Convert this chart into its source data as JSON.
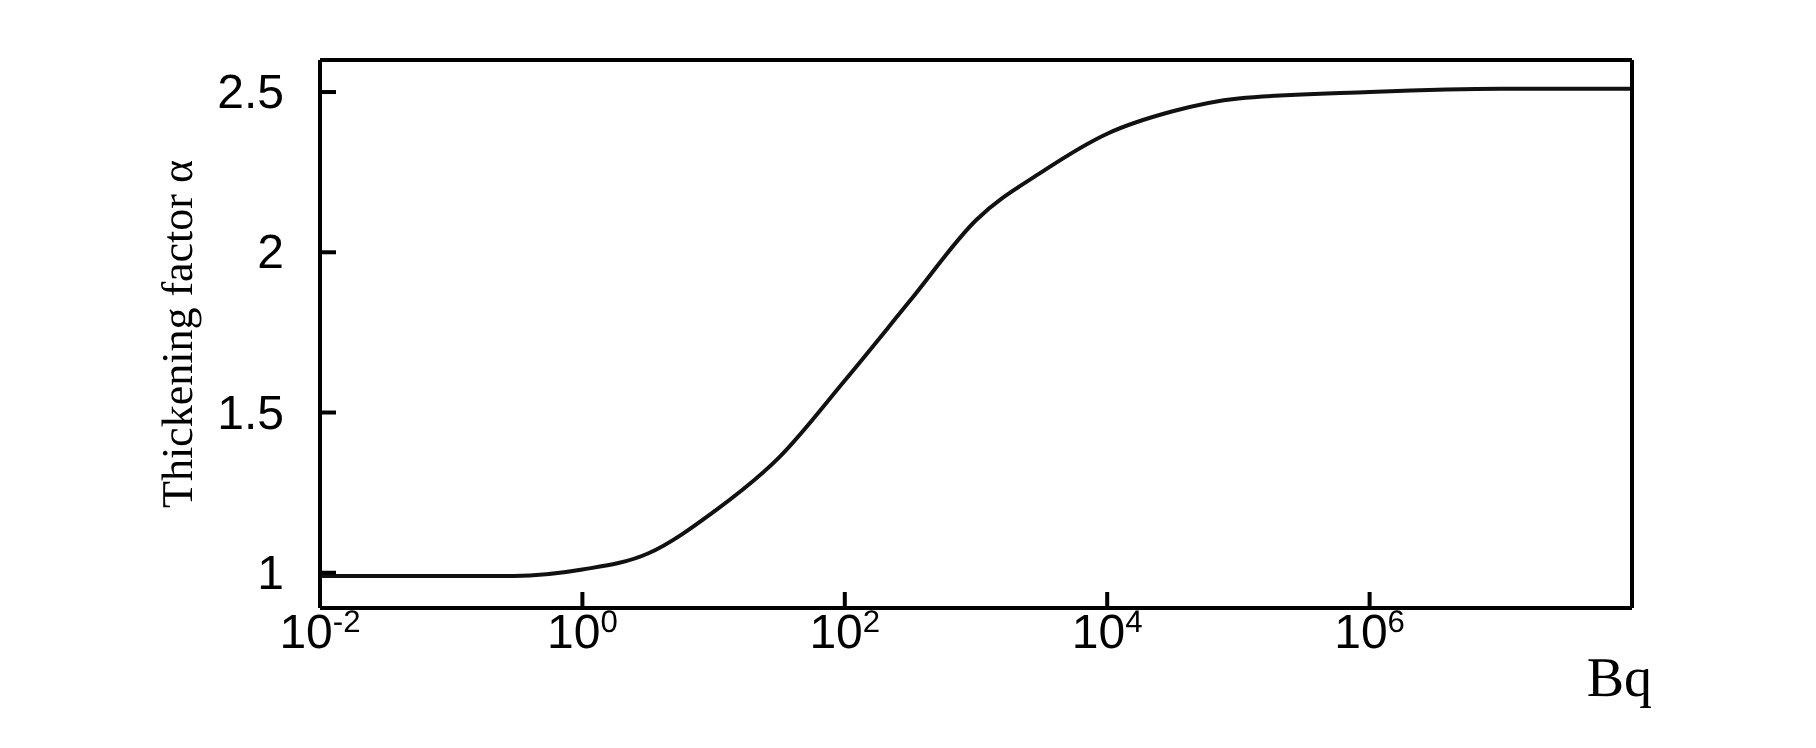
{
  "chart_data": {
    "type": "line",
    "xlabel": "Bq",
    "ylabel": "Thickening factor α",
    "log": "x",
    "x": [
      0.01,
      0.1,
      0.3,
      1,
      3.16,
      10,
      31.6,
      100,
      316,
      1000,
      3160,
      10000,
      31600,
      100000,
      1000000,
      10000000,
      100000000
    ],
    "series": [
      {
        "color": "#111111",
        "values": [
          0.99,
          0.99,
          0.99,
          1.01,
          1.06,
          1.19,
          1.36,
          1.6,
          1.85,
          2.1,
          2.25,
          2.37,
          2.44,
          2.48,
          2.5,
          2.51,
          2.51
        ]
      }
    ],
    "xlim": [
      0.01,
      100000000
    ],
    "xticks": [
      {
        "value": 0.01,
        "label": "10$^{-2}$"
      },
      {
        "value": 1,
        "label": "10$^{0}$"
      },
      {
        "value": 100,
        "label": "10$^{2}$"
      },
      {
        "value": 10000,
        "label": "10$^{4}$"
      },
      {
        "value": 1000000,
        "label": "10$^{6}$"
      }
    ],
    "ylim": [
      0.89,
      2.6
    ],
    "yticks": [
      1,
      1.5,
      2,
      2.5
    ],
    "marker": "none",
    "line_style": "solid"
  }
}
